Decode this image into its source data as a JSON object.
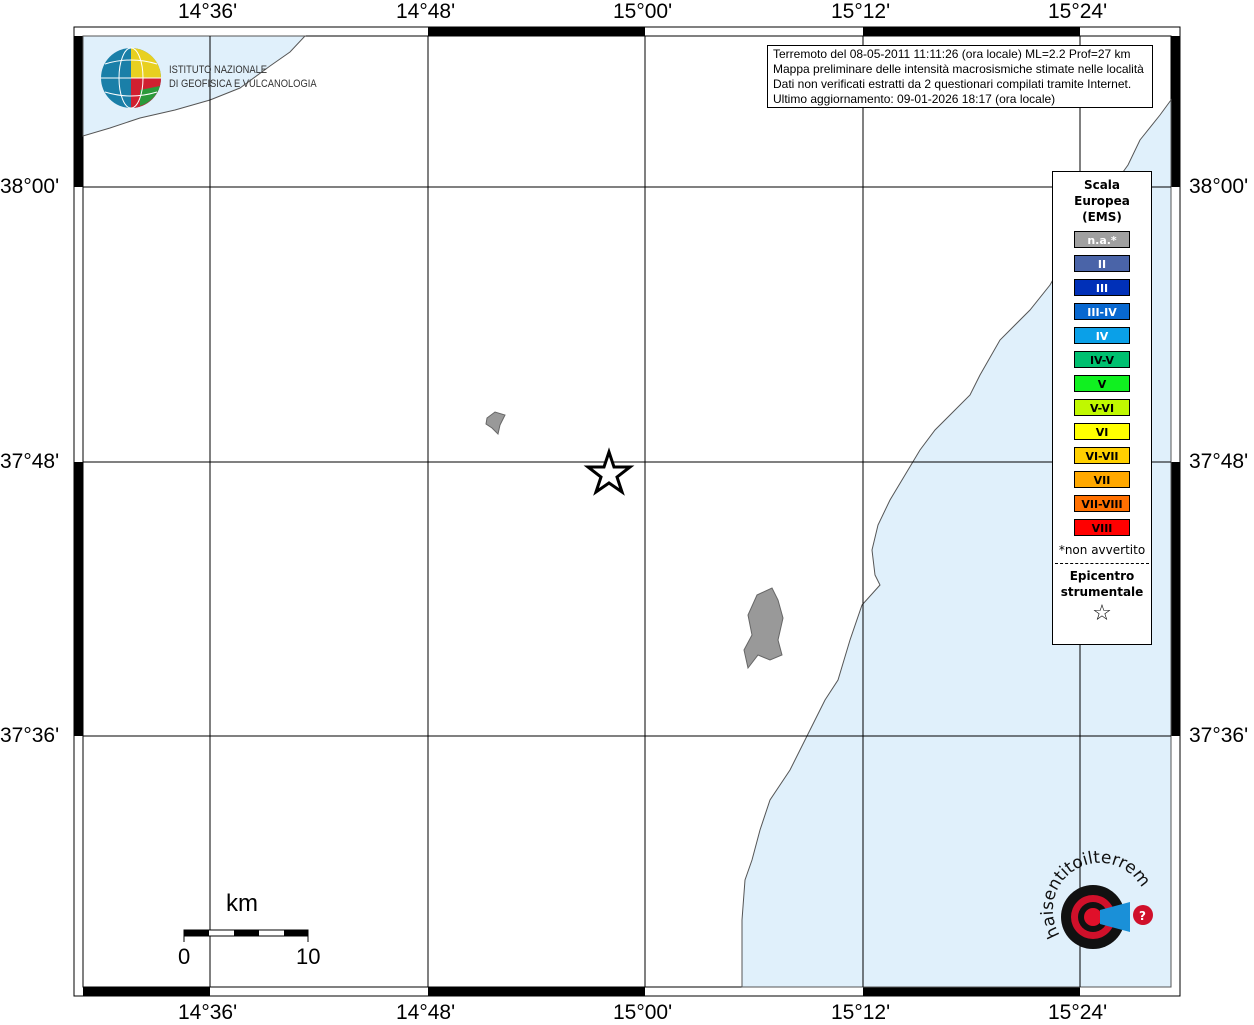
{
  "map": {
    "top_ticks": [
      "14°36'",
      "14°48'",
      "15°00'",
      "15°12'",
      "15°24'"
    ],
    "bottom_ticks": [
      "14°36'",
      "14°48'",
      "15°00'",
      "15°12'",
      "15°24'"
    ],
    "left_ticks": [
      "38°00'",
      "37°48'",
      "37°36'"
    ],
    "right_ticks": [
      "38°00'",
      "37°48'",
      "37°36'"
    ],
    "sea_color": "#e0f0fb",
    "epicenter_icon": "star-icon"
  },
  "info": {
    "line1": "Terremoto del 08-05-2011 11:11:26 (ora locale) ML=2.2 Prof=27 km",
    "line2": "Mappa preliminare delle intensità macrosismiche stimate nelle località",
    "line3": "Dati non verificati estratti da 2 questionari compilati tramite Internet.",
    "line4": "Ultimo aggiornamento: 09-01-2026 18:17 (ora locale)"
  },
  "legend": {
    "title1": "Scala",
    "title2": "Europea",
    "title3": "(EMS)",
    "items": [
      {
        "label": "n.a.*",
        "color": "#a0a0a0",
        "text": "#ffffff"
      },
      {
        "label": "II",
        "color": "#4a64a8",
        "text": "#ffffff"
      },
      {
        "label": "III",
        "color": "#0030b8",
        "text": "#ffffff"
      },
      {
        "label": "III-IV",
        "color": "#0868d0",
        "text": "#ffffff"
      },
      {
        "label": "IV",
        "color": "#0aa0e8",
        "text": "#ffffff"
      },
      {
        "label": "IV-V",
        "color": "#00c070",
        "text": "#000000"
      },
      {
        "label": "V",
        "color": "#10f020",
        "text": "#000000"
      },
      {
        "label": "V-VI",
        "color": "#c0f800",
        "text": "#000000"
      },
      {
        "label": "VI",
        "color": "#ffff00",
        "text": "#000000"
      },
      {
        "label": "VI-VII",
        "color": "#ffd000",
        "text": "#000000"
      },
      {
        "label": "VII",
        "color": "#ffa800",
        "text": "#000000"
      },
      {
        "label": "VII-VIII",
        "color": "#ff7000",
        "text": "#000000"
      },
      {
        "label": "VIII",
        "color": "#ff0000",
        "text": "#000000"
      }
    ],
    "note": "*non avvertito",
    "epi1": "Epicentro",
    "epi2": "strumentale"
  },
  "scale": {
    "unit": "km",
    "min": "0",
    "max": "10"
  },
  "logos": {
    "ingv": "ISTITUTO NAZIONALE DI GEOFISICA E VULCANOLOGIA",
    "hsit": "www.haisentitoilterremoto.it"
  }
}
